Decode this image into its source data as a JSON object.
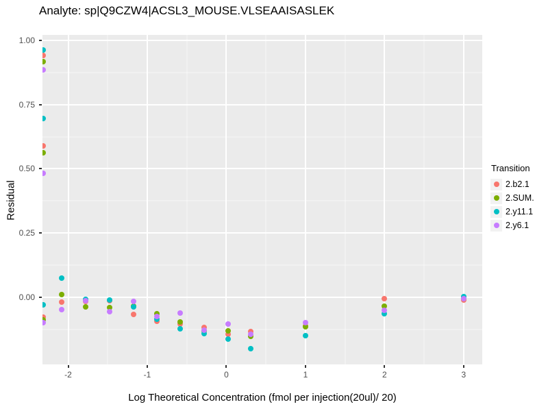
{
  "chart_data": {
    "type": "scatter",
    "title": "Analyte: sp|Q9CZW4|ACSL3_MOUSE.VLSEAAISASLEK",
    "xlabel": "Log Theoretical Concentration (fmol per injection(20ul)/ 20)",
    "ylabel": "Residual",
    "x_domain": [
      -2.325,
      3.235
    ],
    "y_domain": [
      -0.261,
      1.021
    ],
    "x_ticks": [
      -2,
      -1,
      0,
      1,
      2,
      3
    ],
    "x_tick_labels": [
      "-2",
      "-1",
      "0",
      "1",
      "2",
      "3"
    ],
    "x_minor": [
      -1.5,
      -0.5,
      0.5,
      1.5,
      2.5
    ],
    "y_ticks": [
      0,
      0.25,
      0.5,
      0.75,
      1.0
    ],
    "y_tick_labels": [
      "0.00",
      "0.25",
      "0.50",
      "0.75",
      "1.00"
    ],
    "y_minor": [
      -0.125,
      0.125,
      0.375,
      0.625,
      0.875
    ],
    "grid": true,
    "panel_background": "#EBEBEB",
    "gridline_color": "#FFFFFF",
    "legend": {
      "title": "Transition",
      "position": "right"
    },
    "series": [
      {
        "name": "2.b2.1",
        "color": "#F8766D",
        "points": [
          [
            -2.32,
            0.94
          ],
          [
            -2.32,
            0.59
          ],
          [
            -2.32,
            -0.077
          ],
          [
            -2.08,
            -0.018
          ],
          [
            -1.78,
            -0.015
          ],
          [
            -1.48,
            -0.012
          ],
          [
            -1.17,
            -0.066
          ],
          [
            -0.88,
            -0.092
          ],
          [
            -0.58,
            -0.104
          ],
          [
            -0.28,
            -0.118
          ],
          [
            0.02,
            -0.144
          ],
          [
            0.31,
            -0.133
          ],
          [
            1.0,
            -0.112
          ],
          [
            2.0,
            -0.005
          ],
          [
            3.0,
            -0.01
          ]
        ]
      },
      {
        "name": "2.SUM.",
        "color": "#7CAE00",
        "points": [
          [
            -2.32,
            0.918
          ],
          [
            -2.32,
            0.563
          ],
          [
            -2.32,
            -0.089
          ],
          [
            -2.08,
            0.01
          ],
          [
            -1.78,
            -0.037
          ],
          [
            -1.48,
            -0.04
          ],
          [
            -1.17,
            -0.034
          ],
          [
            -0.88,
            -0.063
          ],
          [
            -0.58,
            -0.097
          ],
          [
            -0.28,
            -0.131
          ],
          [
            0.02,
            -0.131
          ],
          [
            0.31,
            -0.151
          ],
          [
            1.0,
            -0.115
          ],
          [
            2.0,
            -0.035
          ],
          [
            3.0,
            -0.004
          ]
        ]
      },
      {
        "name": "2.y11.1",
        "color": "#00BFC4",
        "points": [
          [
            -2.32,
            0.962
          ],
          [
            -2.32,
            0.696
          ],
          [
            -2.32,
            -0.029
          ],
          [
            -2.08,
            0.075
          ],
          [
            -1.78,
            -0.008
          ],
          [
            -1.48,
            -0.011
          ],
          [
            -1.17,
            -0.036
          ],
          [
            -0.88,
            -0.086
          ],
          [
            -0.58,
            -0.122
          ],
          [
            -0.28,
            -0.14
          ],
          [
            0.02,
            -0.162
          ],
          [
            0.31,
            -0.199
          ],
          [
            1.0,
            -0.149
          ],
          [
            2.0,
            -0.065
          ],
          [
            3.0,
            0.003
          ]
        ]
      },
      {
        "name": "2.y6.1",
        "color": "#C77CFF",
        "points": [
          [
            -2.32,
            0.886
          ],
          [
            -2.32,
            0.483
          ],
          [
            -2.32,
            -0.099
          ],
          [
            -2.08,
            -0.049
          ],
          [
            -1.78,
            -0.012
          ],
          [
            -1.48,
            -0.055
          ],
          [
            -1.17,
            -0.015
          ],
          [
            -0.88,
            -0.074
          ],
          [
            -0.58,
            -0.061
          ],
          [
            -0.28,
            -0.128
          ],
          [
            0.02,
            -0.105
          ],
          [
            0.31,
            -0.145
          ],
          [
            1.0,
            -0.098
          ],
          [
            2.0,
            -0.051
          ],
          [
            3.0,
            -0.005
          ]
        ]
      }
    ]
  }
}
